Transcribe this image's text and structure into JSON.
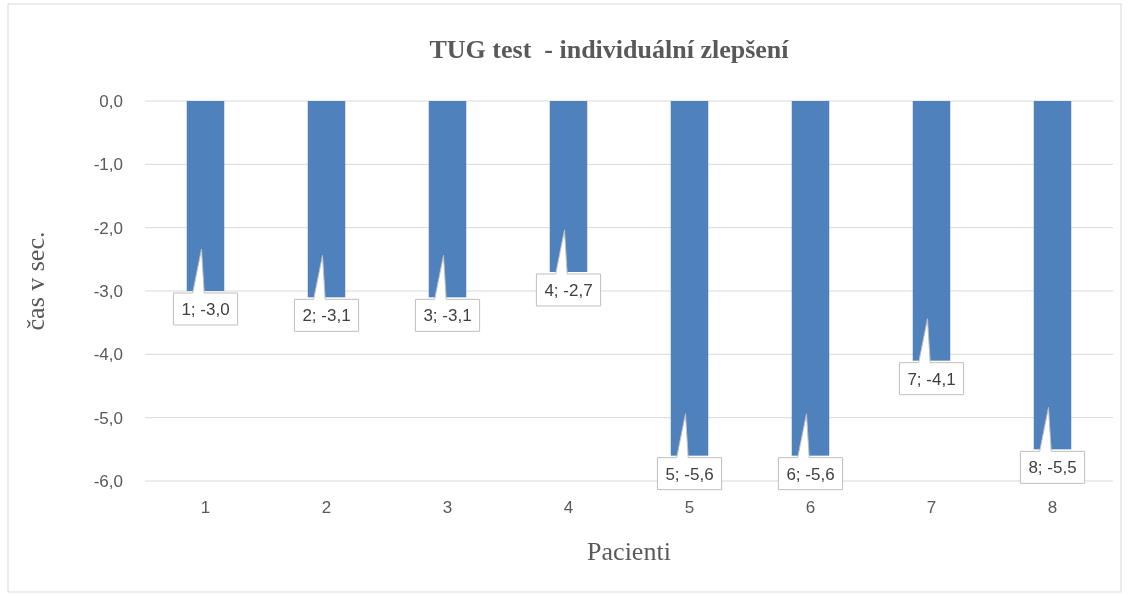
{
  "chart_data": {
    "type": "bar",
    "title": "TUG test  - individuální zlepšení",
    "xlabel": "Pacienti",
    "ylabel": "čas v sec.",
    "categories": [
      "1",
      "2",
      "3",
      "4",
      "5",
      "6",
      "7",
      "8"
    ],
    "values": [
      -3.0,
      -3.1,
      -3.1,
      -2.7,
      -5.6,
      -5.6,
      -4.1,
      -5.5
    ],
    "value_labels": [
      "1; -3,0",
      "2; -3,1",
      "3; -3,1",
      "4; -2,7",
      "5; -5,6",
      "6; -5,6",
      "7; -4,1",
      "8; -5,5"
    ],
    "color": "#4f81bd",
    "ylim": [
      -6,
      0
    ],
    "yticks": [
      {
        "value": 0,
        "label": "0,0"
      },
      {
        "value": -1,
        "label": "-1,0"
      },
      {
        "value": -2,
        "label": "-2,0"
      },
      {
        "value": -3,
        "label": "-3,0"
      },
      {
        "value": -4,
        "label": "-4,0"
      },
      {
        "value": -5,
        "label": "-5,0"
      },
      {
        "value": -6,
        "label": "-6,0"
      }
    ],
    "grid": "y"
  }
}
